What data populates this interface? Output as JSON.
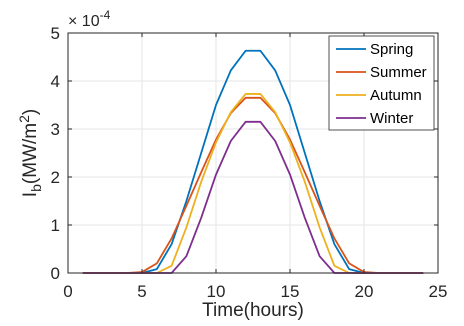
{
  "chart_data": {
    "type": "line",
    "title": "",
    "xlabel": "Time(hours)",
    "ylabel": {
      "base": "I",
      "sub": "b",
      "rest": "(MW/m",
      "sup": "2",
      "end": ")"
    },
    "xlim": [
      0,
      25
    ],
    "ylim": [
      0,
      5
    ],
    "xticks": [
      "0",
      "5",
      "10",
      "15",
      "20",
      "25"
    ],
    "yticks": [
      "0",
      "1",
      "2",
      "3",
      "4",
      "5"
    ],
    "y_exponent": {
      "base": "× 10",
      "power": "-4"
    },
    "grid": true,
    "legend_position": "top-right",
    "x": [
      1,
      2,
      3,
      4,
      5,
      6,
      7,
      8,
      9,
      10,
      11,
      12,
      13,
      14,
      15,
      16,
      17,
      18,
      19,
      20,
      21,
      22,
      23,
      24
    ],
    "series": [
      {
        "name": "Spring",
        "color": "#0072BD",
        "values": [
          0,
          0,
          0,
          0,
          0,
          0.08,
          0.6,
          1.5,
          2.5,
          3.5,
          4.22,
          4.63,
          4.63,
          4.22,
          3.5,
          2.5,
          1.5,
          0.6,
          0.08,
          0,
          0,
          0,
          0,
          0
        ]
      },
      {
        "name": "Summer",
        "color": "#D95319",
        "values": [
          0,
          0,
          0,
          0,
          0.02,
          0.2,
          0.72,
          1.4,
          2.1,
          2.78,
          3.33,
          3.65,
          3.65,
          3.33,
          2.78,
          2.1,
          1.4,
          0.72,
          0.2,
          0.02,
          0,
          0,
          0,
          0
        ]
      },
      {
        "name": "Autumn",
        "color": "#EDB120",
        "values": [
          0,
          0,
          0,
          0,
          0,
          0,
          0.15,
          0.95,
          1.9,
          2.72,
          3.35,
          3.73,
          3.73,
          3.35,
          2.72,
          1.9,
          0.95,
          0.15,
          0,
          0,
          0,
          0,
          0,
          0
        ]
      },
      {
        "name": "Winter",
        "color": "#7E2F8E",
        "values": [
          0,
          0,
          0,
          0,
          0,
          0,
          0,
          0.35,
          1.15,
          2.05,
          2.75,
          3.15,
          3.15,
          2.75,
          2.05,
          1.15,
          0.35,
          0,
          0,
          0,
          0,
          0,
          0,
          0
        ]
      }
    ]
  }
}
